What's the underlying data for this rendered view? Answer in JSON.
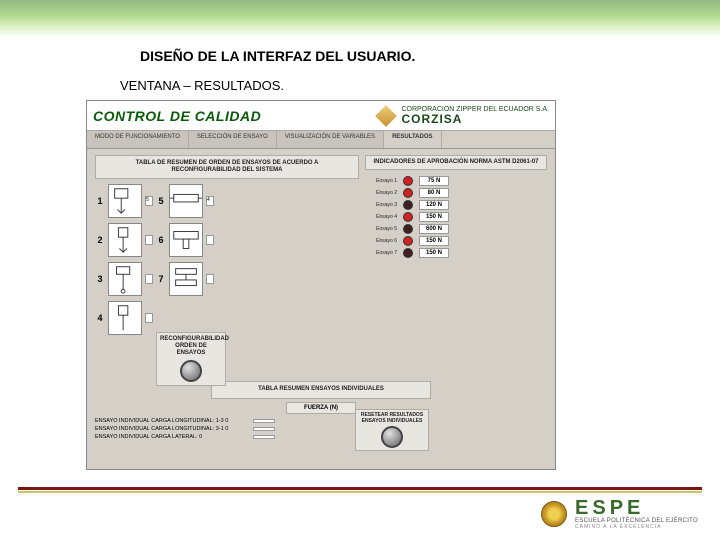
{
  "slide": {
    "title": "DISEÑO DE LA INTERFAZ DEL USUARIO.",
    "subtitle": "VENTANA – RESULTADOS."
  },
  "colors": {
    "top_gradient_dark": "#4a8a2a",
    "panel_bg": "#d4d0c8",
    "box_bg": "#e8e6e0",
    "header_green": "#0a5a0a",
    "led_on": "#d02020",
    "led_off": "#402020",
    "footer_bar": "#7a1818",
    "footer_accent": "#d4c060",
    "espe_green": "#3a6a2a"
  },
  "app": {
    "header_title": "CONTROL DE CALIDAD",
    "corp_line": "CORPORACION ZIPPER DEL ECUADOR S.A.",
    "brand": "CORZISA",
    "tabs": [
      {
        "label": "MODO DE FUNCIONAMIENTO",
        "active": false
      },
      {
        "label": "SELECCIÓN DE ENSAYO",
        "active": false
      },
      {
        "label": "VISUALIZACIÓN DE VARIABLES",
        "active": false
      },
      {
        "label": "RESULTADOS",
        "active": true
      }
    ],
    "resumen_title": "TABLA DE RESUMEN DE ORDEN DE ENSAYOS DE ACUERDO A RECONFIGURABILIDAD DEL SISTEMA",
    "ensayos": [
      {
        "n": "1",
        "v": "5"
      },
      {
        "n": "5",
        "v": "4"
      },
      {
        "n": "2",
        "v": ""
      },
      {
        "n": "6",
        "v": ""
      },
      {
        "n": "3",
        "v": ""
      },
      {
        "n": "7",
        "v": ""
      },
      {
        "n": "4",
        "v": ""
      }
    ],
    "reconf_label": "RECONFIGURABILIDAD ORDEN DE ENSAYOS",
    "norma_title": "INDICADORES DE APROBACIÓN NORMA ASTM D2061-07",
    "leds": [
      {
        "label": "Ensayo 1",
        "on": true,
        "value": "75 N"
      },
      {
        "label": "Ensayo 2",
        "on": true,
        "value": "80 N"
      },
      {
        "label": "Ensayo 3",
        "on": false,
        "value": "120 N"
      },
      {
        "label": "Ensayo 4",
        "on": true,
        "value": "150 N"
      },
      {
        "label": "Ensayo 5",
        "on": false,
        "value": "600 N"
      },
      {
        "label": "Ensayo 6",
        "on": true,
        "value": "150 N"
      },
      {
        "label": "Ensayo 7",
        "on": false,
        "value": "150 N"
      }
    ],
    "tabla_ind_title": "TABLA RESUMEN ENSAYOS INDIVIDUALES",
    "fuerza_label": "FUERZA (N)",
    "ind_rows": [
      {
        "label": "ENSAYO INDIVIDUAL CARGA LONGITUDINAL: 1-3 0",
        "val": ""
      },
      {
        "label": "ENSAYO INDIVIDUAL CARGA LONGITUDINAL: 3-1 0",
        "val": ""
      },
      {
        "label": "ENSAYO INDIVIDUAL CARGA LATERAL: 0",
        "val": ""
      }
    ],
    "reset_label": "RESETEAR RESULTADOS ENSAYOS INDIVIDUALES"
  },
  "footer": {
    "brand": "ESPE",
    "sub1": "ESCUELA POLITÉCNICA DEL EJÉRCITO",
    "sub2": "CAMINO A LA EXCELENCIA"
  }
}
